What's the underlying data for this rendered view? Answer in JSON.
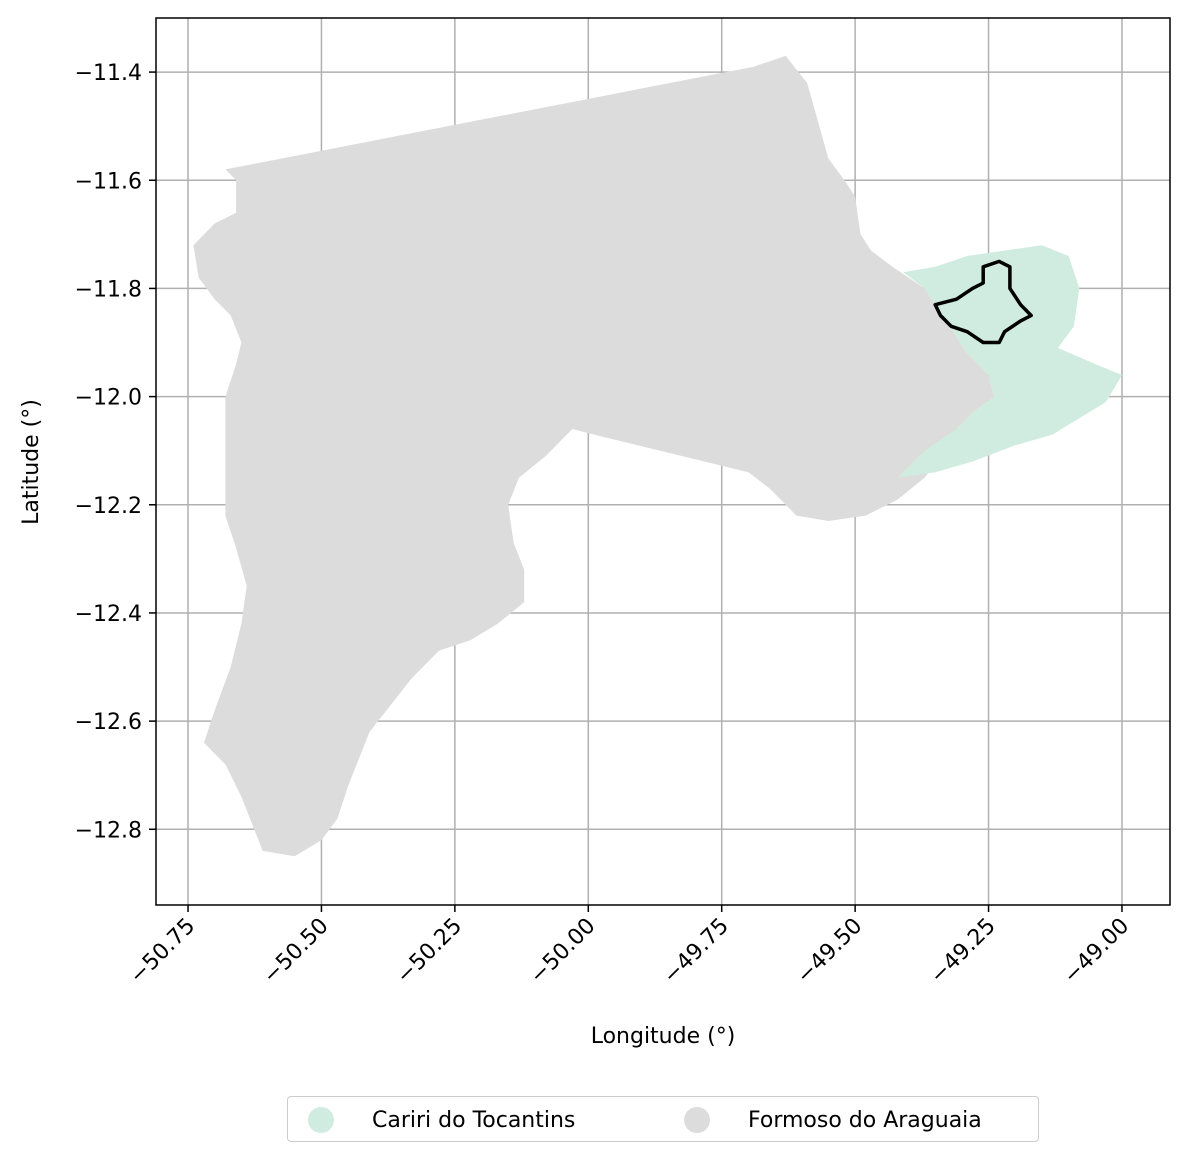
{
  "chart_data": {
    "type": "map",
    "xlabel": "Longitude (°)",
    "ylabel": "Latitude (°)",
    "xlim": [
      -50.81,
      -48.91
    ],
    "ylim": [
      -12.94,
      -11.3
    ],
    "grid": true,
    "x_ticks": [
      -50.75,
      -50.5,
      -50.25,
      -50.0,
      -49.75,
      -49.5,
      -49.25,
      -49.0
    ],
    "x_tick_labels": [
      "−50.75",
      "−50.50",
      "−50.25",
      "−50.00",
      "−49.75",
      "−49.50",
      "−49.25",
      "−49.00"
    ],
    "y_ticks": [
      -11.4,
      -11.6,
      -11.8,
      -12.0,
      -12.2,
      -12.4,
      -12.6,
      -12.8
    ],
    "y_tick_labels": [
      "−11.4",
      "−11.6",
      "−11.8",
      "−12.0",
      "−12.2",
      "−12.4",
      "−12.6",
      "−12.8"
    ],
    "legend_position": "bottom-center",
    "regions": [
      {
        "name": "Formoso do Araguaia",
        "color": "#dcdcdc",
        "outline": [
          [
            -50.68,
            -11.58
          ],
          [
            -49.69,
            -11.39
          ],
          [
            -49.63,
            -11.37
          ],
          [
            -49.59,
            -11.42
          ],
          [
            -49.57,
            -11.49
          ],
          [
            -49.55,
            -11.56
          ],
          [
            -49.52,
            -11.6
          ],
          [
            -49.5,
            -11.63
          ],
          [
            -49.49,
            -11.7
          ],
          [
            -49.47,
            -11.73
          ],
          [
            -49.43,
            -11.76
          ],
          [
            -49.4,
            -11.78
          ],
          [
            -49.37,
            -11.8
          ],
          [
            -49.33,
            -11.86
          ],
          [
            -49.29,
            -11.92
          ],
          [
            -49.25,
            -11.96
          ],
          [
            -49.24,
            -12.0
          ],
          [
            -49.28,
            -12.03
          ],
          [
            -49.31,
            -12.06
          ],
          [
            -49.33,
            -12.1
          ],
          [
            -49.37,
            -12.15
          ],
          [
            -49.42,
            -12.19
          ],
          [
            -49.48,
            -12.22
          ],
          [
            -49.55,
            -12.23
          ],
          [
            -49.61,
            -12.22
          ],
          [
            -49.66,
            -12.17
          ],
          [
            -49.7,
            -12.14
          ],
          [
            -49.99,
            -12.07
          ],
          [
            -50.03,
            -12.06
          ],
          [
            -50.08,
            -12.11
          ],
          [
            -50.13,
            -12.15
          ],
          [
            -50.15,
            -12.2
          ],
          [
            -50.14,
            -12.27
          ],
          [
            -50.12,
            -12.32
          ],
          [
            -50.12,
            -12.38
          ],
          [
            -50.17,
            -12.42
          ],
          [
            -50.22,
            -12.45
          ],
          [
            -50.28,
            -12.47
          ],
          [
            -50.33,
            -12.52
          ],
          [
            -50.37,
            -12.57
          ],
          [
            -50.41,
            -12.62
          ],
          [
            -50.43,
            -12.67
          ],
          [
            -50.45,
            -12.72
          ],
          [
            -50.47,
            -12.78
          ],
          [
            -50.5,
            -12.82
          ],
          [
            -50.55,
            -12.85
          ],
          [
            -50.61,
            -12.84
          ],
          [
            -50.63,
            -12.79
          ],
          [
            -50.65,
            -12.74
          ],
          [
            -50.68,
            -12.68
          ],
          [
            -50.72,
            -12.64
          ],
          [
            -50.7,
            -12.58
          ],
          [
            -50.67,
            -12.5
          ],
          [
            -50.65,
            -12.42
          ],
          [
            -50.64,
            -12.35
          ],
          [
            -50.66,
            -12.28
          ],
          [
            -50.68,
            -12.22
          ],
          [
            -50.68,
            -12.15
          ],
          [
            -50.68,
            -12.08
          ],
          [
            -50.68,
            -12.0
          ],
          [
            -50.66,
            -11.94
          ],
          [
            -50.65,
            -11.9
          ],
          [
            -50.67,
            -11.85
          ],
          [
            -50.7,
            -11.82
          ],
          [
            -50.73,
            -11.78
          ],
          [
            -50.74,
            -11.72
          ],
          [
            -50.7,
            -11.68
          ],
          [
            -50.66,
            -11.66
          ],
          [
            -50.66,
            -11.6
          ]
        ]
      },
      {
        "name": "Cariri do Tocantins",
        "color": "#d0ebdf",
        "outline": [
          [
            -49.41,
            -11.77
          ],
          [
            -49.35,
            -11.76
          ],
          [
            -49.29,
            -11.74
          ],
          [
            -49.22,
            -11.73
          ],
          [
            -49.15,
            -11.72
          ],
          [
            -49.1,
            -11.74
          ],
          [
            -49.08,
            -11.8
          ],
          [
            -49.09,
            -11.87
          ],
          [
            -49.12,
            -11.91
          ],
          [
            -49.05,
            -11.94
          ],
          [
            -49.0,
            -11.96
          ],
          [
            -49.03,
            -12.01
          ],
          [
            -49.08,
            -12.04
          ],
          [
            -49.13,
            -12.07
          ],
          [
            -49.2,
            -12.09
          ],
          [
            -49.28,
            -12.12
          ],
          [
            -49.35,
            -12.14
          ],
          [
            -49.42,
            -12.15
          ],
          [
            -49.37,
            -12.1
          ],
          [
            -49.31,
            -12.06
          ],
          [
            -49.28,
            -12.03
          ],
          [
            -49.24,
            -12.0
          ],
          [
            -49.25,
            -11.96
          ],
          [
            -49.29,
            -11.92
          ],
          [
            -49.33,
            -11.86
          ],
          [
            -49.37,
            -11.8
          ]
        ]
      },
      {
        "name": "outline",
        "color": "#000000",
        "outline": [
          [
            -49.26,
            -11.76
          ],
          [
            -49.23,
            -11.75
          ],
          [
            -49.21,
            -11.76
          ],
          [
            -49.21,
            -11.8
          ],
          [
            -49.19,
            -11.83
          ],
          [
            -49.17,
            -11.85
          ],
          [
            -49.19,
            -11.86
          ],
          [
            -49.22,
            -11.88
          ],
          [
            -49.23,
            -11.9
          ],
          [
            -49.26,
            -11.9
          ],
          [
            -49.29,
            -11.88
          ],
          [
            -49.32,
            -11.87
          ],
          [
            -49.34,
            -11.85
          ],
          [
            -49.35,
            -11.83
          ],
          [
            -49.31,
            -11.82
          ],
          [
            -49.28,
            -11.8
          ],
          [
            -49.26,
            -11.79
          ]
        ]
      }
    ]
  },
  "legend": {
    "items": [
      {
        "label": "Cariri do Tocantins",
        "color": "#d0ebdf"
      },
      {
        "label": "Formoso do Araguaia",
        "color": "#dcdcdc"
      }
    ]
  }
}
